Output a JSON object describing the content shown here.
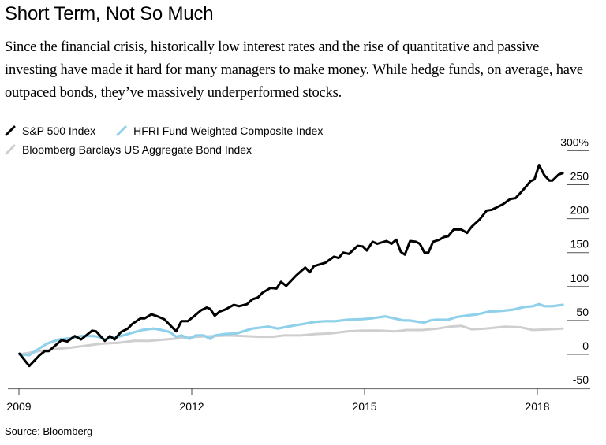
{
  "header": {
    "title": "Short Term, Not So Much",
    "subtitle": "Since the financial crisis, historically low interest rates and the rise of quantitative and passive investing have made it hard for many managers to make money. While hedge funds, on average, have outpaced bonds, they’ve massively underperformed stocks."
  },
  "footer": {
    "source": "Source: Bloomberg"
  },
  "colors": {
    "sp500": "#000000",
    "hfri": "#8fd0ea",
    "bond": "#cfcfcf",
    "axis": "#666666"
  },
  "chart_data": {
    "type": "line",
    "title": "Short Term, Not So Much",
    "xlabel": "",
    "ylabel": "",
    "xlim": [
      2009,
      2019
    ],
    "ylim": [
      -50,
      300
    ],
    "x_ticks": [
      2009,
      2012,
      2015,
      2018
    ],
    "x_tick_labels": [
      "2009",
      "2012",
      "2015",
      "2018"
    ],
    "y_ticks": [
      -50,
      0,
      50,
      100,
      150,
      200,
      250,
      300
    ],
    "y_tick_labels": [
      "-50",
      "0",
      "50",
      "100",
      "150",
      "200",
      "250",
      "300%"
    ],
    "y_axis_position": "right",
    "grid": false,
    "legend_position": "top-left",
    "series": [
      {
        "name": "S&P 500 Index",
        "color": "#000000",
        "x": [
          2009.01,
          2009.18,
          2009.36,
          2009.45,
          2009.52,
          2009.63,
          2009.74,
          2009.84,
          2009.97,
          2010.08,
          2010.27,
          2010.34,
          2010.49,
          2010.58,
          2010.66,
          2010.77,
          2010.89,
          2010.97,
          2011.11,
          2011.18,
          2011.3,
          2011.38,
          2011.52,
          2011.73,
          2011.82,
          2011.93,
          2012.05,
          2012.16,
          2012.26,
          2012.32,
          2012.4,
          2012.48,
          2012.58,
          2012.73,
          2012.82,
          2012.96,
          2013.05,
          2013.15,
          2013.23,
          2013.37,
          2013.47,
          2013.55,
          2013.64,
          2013.81,
          2013.97,
          2014.05,
          2014.12,
          2014.32,
          2014.47,
          2014.55,
          2014.63,
          2014.73,
          2014.88,
          2014.97,
          2015.04,
          2015.14,
          2015.22,
          2015.38,
          2015.47,
          2015.55,
          2015.63,
          2015.7,
          2015.79,
          2015.89,
          2015.96,
          2016.04,
          2016.11,
          2016.19,
          2016.3,
          2016.38,
          2016.45,
          2016.55,
          2016.68,
          2016.78,
          2016.86,
          2017.0,
          2017.12,
          2017.21,
          2017.4,
          2017.53,
          2017.62,
          2017.75,
          2017.88,
          2017.95,
          2018.03,
          2018.12,
          2018.21,
          2018.26,
          2018.37,
          2018.44
        ],
        "values": [
          1,
          -17,
          -1,
          5,
          5,
          13,
          21,
          19,
          27,
          22,
          35,
          34,
          20,
          27,
          22,
          33,
          38,
          45,
          53,
          53,
          59,
          57,
          52,
          34,
          49,
          49,
          57,
          65,
          69,
          67,
          57,
          63,
          66,
          73,
          71,
          74,
          81,
          84,
          91,
          98,
          97,
          107,
          101,
          116,
          128,
          121,
          130,
          135,
          144,
          142,
          150,
          148,
          160,
          159,
          153,
          166,
          163,
          167,
          163,
          169,
          151,
          147,
          167,
          166,
          163,
          150,
          150,
          166,
          169,
          173,
          174,
          184,
          184,
          179,
          188,
          199,
          212,
          213,
          221,
          229,
          230,
          242,
          255,
          258,
          279,
          264,
          256,
          256,
          265,
          267
        ]
      },
      {
        "name": "HFRI Fund Weighted Composite Index",
        "color": "#8fd0ea",
        "x": [
          2009.01,
          2009.18,
          2009.36,
          2009.49,
          2009.7,
          2009.9,
          2010.08,
          2010.29,
          2010.38,
          2010.49,
          2010.59,
          2010.77,
          2010.93,
          2011.14,
          2011.34,
          2011.48,
          2011.62,
          2011.73,
          2011.82,
          2011.96,
          2012.07,
          2012.21,
          2012.32,
          2012.4,
          2012.58,
          2012.78,
          2013.05,
          2013.33,
          2013.49,
          2013.67,
          2013.95,
          2014.15,
          2014.32,
          2014.49,
          2014.7,
          2014.97,
          2015.11,
          2015.36,
          2015.52,
          2015.68,
          2015.79,
          2015.93,
          2016.04,
          2016.14,
          2016.23,
          2016.34,
          2016.45,
          2016.59,
          2016.75,
          2016.96,
          2017.16,
          2017.37,
          2017.58,
          2017.78,
          2017.92,
          2018.03,
          2018.12,
          2018.26,
          2018.44
        ],
        "values": [
          0,
          -1,
          9,
          16,
          22,
          24,
          27,
          27,
          26,
          22,
          24,
          27,
          31,
          36,
          38,
          36,
          33,
          26,
          28,
          23,
          28,
          28,
          23,
          28,
          30,
          31,
          38,
          41,
          38,
          41,
          45,
          48,
          49,
          49,
          51,
          52,
          53,
          56,
          53,
          50,
          50,
          48,
          47,
          50,
          51,
          51,
          51,
          55,
          57,
          59,
          63,
          64,
          66,
          70,
          71,
          74,
          71,
          71,
          73
        ]
      },
      {
        "name": "Bloomberg Barclays US Aggregate Bond Index",
        "color": "#cfcfcf",
        "x": [
          2009.01,
          2009.36,
          2009.63,
          2009.9,
          2010.18,
          2010.45,
          2010.73,
          2011.0,
          2011.27,
          2011.55,
          2011.82,
          2012.1,
          2012.37,
          2012.64,
          2012.92,
          2013.19,
          2013.4,
          2013.6,
          2013.88,
          2014.15,
          2014.42,
          2014.7,
          2014.97,
          2015.25,
          2015.52,
          2015.73,
          2016.0,
          2016.27,
          2016.48,
          2016.68,
          2016.86,
          2017.1,
          2017.44,
          2017.71,
          2017.92,
          2018.19,
          2018.44
        ],
        "values": [
          0,
          5,
          8,
          10,
          13,
          16,
          17,
          20,
          20,
          22,
          24,
          26,
          27,
          28,
          27,
          26,
          26,
          28,
          28,
          30,
          31,
          34,
          35,
          35,
          34,
          36,
          36,
          38,
          41,
          42,
          37,
          38,
          41,
          40,
          36,
          37,
          38
        ]
      }
    ]
  }
}
